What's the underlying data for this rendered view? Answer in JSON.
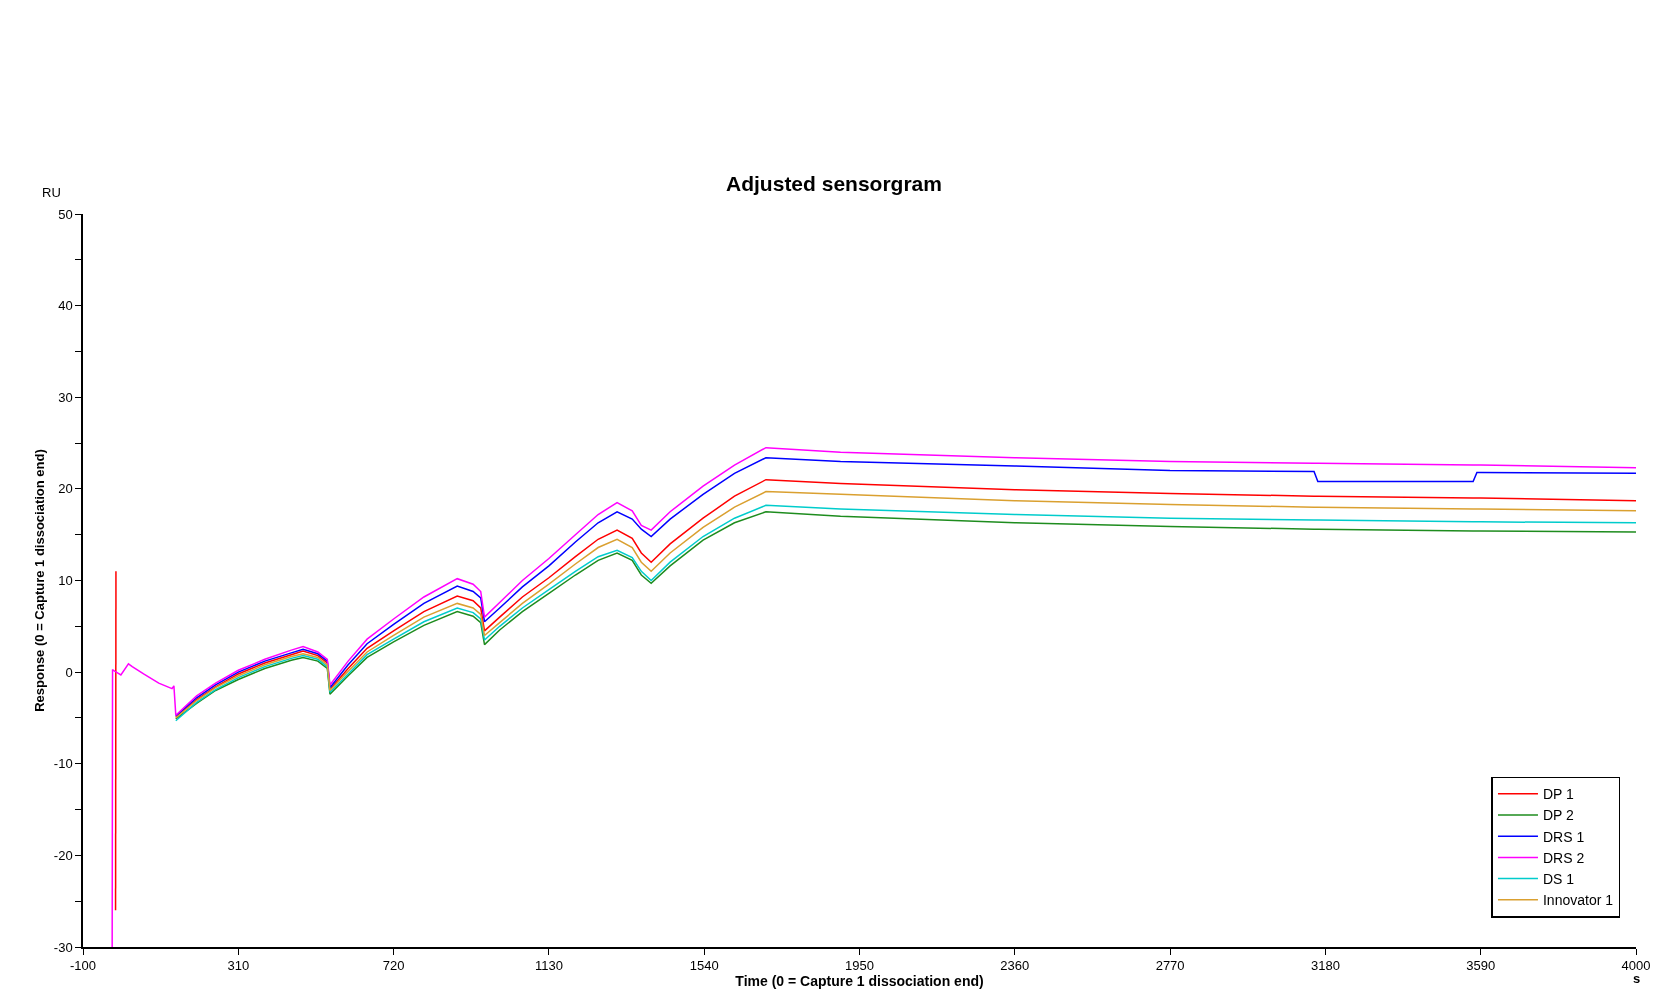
{
  "chart_data": {
    "type": "line",
    "title": "Adjusted sensorgram",
    "xlabel": "Time (0 = Capture 1 dissociation end)",
    "ylabel": "Response (0 = Capture 1 dissociation end)",
    "annotations": [
      "RU",
      "s"
    ],
    "x": [
      -23,
      -22,
      -20,
      0,
      20,
      30,
      60,
      100,
      135,
      140,
      145,
      200,
      250,
      310,
      380,
      450,
      481,
      520,
      545,
      552,
      600,
      650,
      720,
      800,
      888,
      930,
      950,
      960,
      1000,
      1060,
      1130,
      1200,
      1260,
      1310,
      1350,
      1374,
      1400,
      1450,
      1537,
      1620,
      1703,
      1900,
      2360,
      2770,
      3150,
      3160,
      3570,
      3580,
      3590,
      4000
    ],
    "series": [
      {
        "name": "DP 1",
        "color": "#ff0000",
        "x": [
          -14,
          -13,
          -12,
          145,
          200,
          250,
          310,
          380,
          450,
          481,
          520,
          545,
          552,
          600,
          650,
          720,
          800,
          888,
          930,
          950,
          960,
          1000,
          1060,
          1130,
          1200,
          1260,
          1310,
          1350,
          1374,
          1400,
          1450,
          1537,
          1620,
          1703,
          1900,
          2360,
          2770,
          3150,
          3160,
          3570,
          3580,
          3590,
          4000
        ],
        "values": [
          -26,
          11,
          null,
          -4.9,
          -3.0,
          -1.6,
          -0.2,
          1.0,
          1.9,
          2.3,
          1.8,
          1.0,
          -1.9,
          0.4,
          2.6,
          4.5,
          6.6,
          8.3,
          7.8,
          7.0,
          4.5,
          6.0,
          8.2,
          10.3,
          12.6,
          14.5,
          15.5,
          14.6,
          13.0,
          12.0,
          14.0,
          16.8,
          19.2,
          21.0,
          20.6,
          19.9,
          19.5,
          19.2,
          19.2,
          19.0,
          19.0,
          19.0,
          18.7
        ]
      },
      {
        "name": "DP 2",
        "color": "#1e8c1e",
        "values": [
          null,
          null,
          null,
          null,
          null,
          null,
          null,
          null,
          null,
          null,
          -5.1,
          -3.4,
          -2.0,
          -0.8,
          0.4,
          1.3,
          1.6,
          1.2,
          0.4,
          -2.4,
          -0.4,
          1.6,
          3.3,
          5.1,
          6.6,
          6.1,
          5.4,
          3.0,
          4.6,
          6.6,
          8.6,
          10.6,
          12.2,
          13.0,
          12.2,
          10.6,
          9.7,
          11.6,
          14.4,
          16.3,
          17.5,
          17.0,
          16.3,
          15.9,
          15.6,
          15.6,
          15.4,
          15.4,
          15.4,
          15.3
        ]
      },
      {
        "name": "DRS 1",
        "color": "#0000ff",
        "values": [
          null,
          null,
          null,
          null,
          null,
          null,
          null,
          null,
          null,
          null,
          -4.8,
          -2.8,
          -1.4,
          0.0,
          1.2,
          2.1,
          2.5,
          2.0,
          1.2,
          -1.7,
          0.8,
          3.1,
          5.2,
          7.5,
          9.4,
          8.8,
          8.1,
          5.5,
          7.0,
          9.3,
          11.6,
          14.2,
          16.3,
          17.5,
          16.7,
          15.6,
          14.8,
          16.7,
          19.4,
          21.7,
          23.4,
          23.0,
          22.5,
          22.0,
          21.9,
          20.8,
          20.8,
          21.8,
          21.8,
          21.7
        ]
      },
      {
        "name": "DRS 2",
        "color": "#ff00ff",
        "values": [
          -30,
          0.3,
          0.2,
          -0.3,
          0.9,
          0.6,
          -0.2,
          -1.2,
          -1.8,
          -1.5,
          -4.7,
          -2.6,
          -1.2,
          0.2,
          1.4,
          2.4,
          2.8,
          2.2,
          1.4,
          -1.4,
          1.2,
          3.6,
          5.8,
          8.2,
          10.2,
          9.6,
          8.8,
          6.0,
          7.6,
          10.0,
          12.4,
          15.0,
          17.2,
          18.5,
          17.6,
          16.0,
          15.5,
          17.5,
          20.3,
          22.6,
          24.5,
          24.0,
          23.4,
          23.0,
          22.8,
          22.8,
          22.6,
          22.6,
          22.6,
          22.3
        ]
      },
      {
        "name": "DS 1",
        "color": "#00cccc",
        "values": [
          null,
          null,
          null,
          null,
          null,
          null,
          null,
          null,
          null,
          null,
          -5.3,
          -3.3,
          -1.9,
          -0.6,
          0.6,
          1.5,
          1.8,
          1.4,
          0.6,
          -2.2,
          -0.2,
          1.9,
          3.6,
          5.5,
          7.0,
          6.5,
          5.8,
          3.5,
          5.0,
          7.0,
          9.0,
          11.0,
          12.6,
          13.3,
          12.5,
          11.0,
          10.0,
          12.0,
          14.8,
          16.8,
          18.2,
          17.8,
          17.2,
          16.8,
          16.6,
          16.6,
          16.4,
          16.4,
          16.4,
          16.3
        ]
      },
      {
        "name": "Innovator 1",
        "color": "#daa030",
        "values": [
          null,
          null,
          null,
          null,
          null,
          null,
          null,
          null,
          null,
          null,
          -5.0,
          -3.1,
          -1.7,
          -0.4,
          0.8,
          1.7,
          2.0,
          1.6,
          0.8,
          -2.0,
          0.1,
          2.2,
          4.0,
          6.0,
          7.5,
          7.0,
          6.3,
          4.0,
          5.4,
          7.5,
          9.6,
          11.8,
          13.6,
          14.5,
          13.6,
          12.0,
          11.0,
          13.0,
          15.8,
          18.0,
          19.7,
          19.4,
          18.7,
          18.3,
          18.0,
          18.0,
          17.8,
          17.8,
          17.8,
          17.6
        ]
      }
    ],
    "xlim": [
      -100,
      4000
    ],
    "xticks": [
      -100,
      310,
      720,
      1130,
      1540,
      1950,
      2360,
      2770,
      3180,
      3590,
      4000
    ],
    "ylim": [
      -30,
      50
    ],
    "yticks": [
      -30,
      {
        "value": -25,
        "label": null
      },
      -20,
      {
        "value": -15,
        "label": null
      },
      -10,
      {
        "value": -5,
        "label": null
      },
      0,
      {
        "value": 5,
        "label": null
      },
      10,
      {
        "value": 15,
        "label": null
      },
      20,
      {
        "value": 25,
        "label": null
      },
      30,
      {
        "value": 35,
        "label": null
      },
      40,
      {
        "value": 45,
        "label": null
      },
      50
    ],
    "legend": "bottom right",
    "marker": "none",
    "line_style": "solid"
  }
}
